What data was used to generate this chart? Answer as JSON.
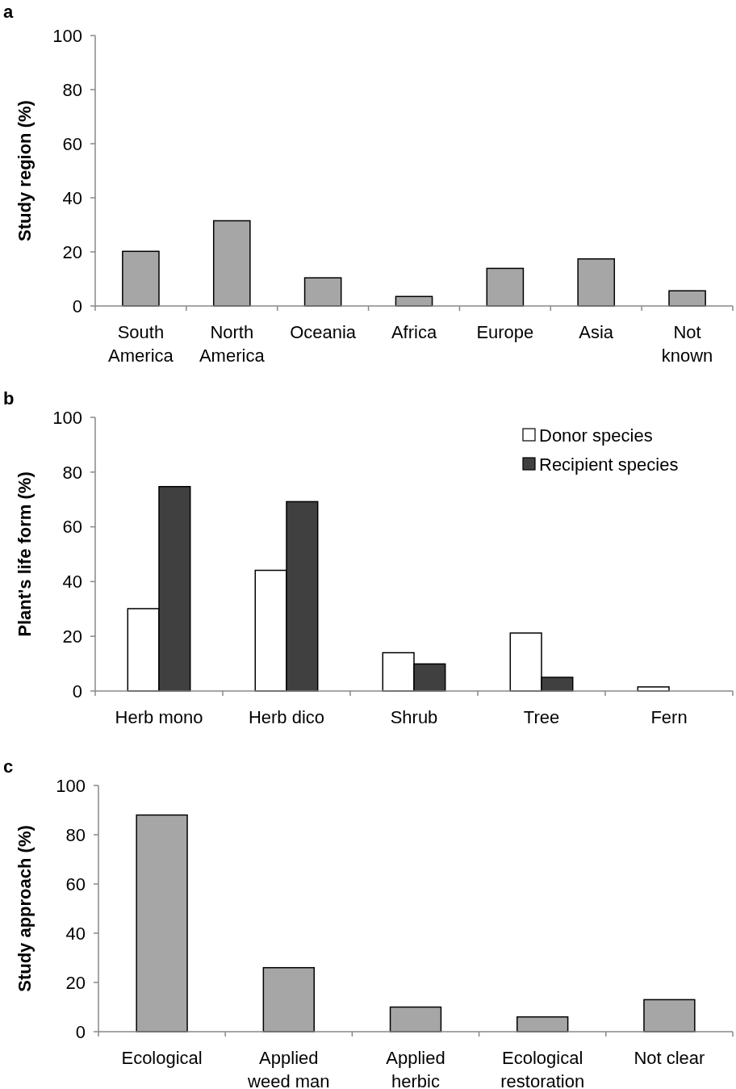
{
  "chart_data": [
    {
      "type": "bar",
      "title": "a",
      "ylabel": "Study region (%)",
      "categories": [
        "South\nAmerica",
        "North\nAmerica",
        "Oceania",
        "Africa",
        "Europe",
        "Asia",
        "Not\nknown"
      ],
      "series": [
        {
          "color": "#a6a6a6",
          "values": [
            20.2,
            31.5,
            10.4,
            3.5,
            13.9,
            17.4,
            5.6
          ]
        }
      ],
      "ylim": [
        0,
        100
      ],
      "yticks": [
        0,
        20,
        40,
        60,
        80,
        100
      ],
      "grid": false,
      "legend": false
    },
    {
      "type": "bar",
      "title": "b",
      "ylabel": "Plant's life form (%)",
      "categories": [
        "Herb mono",
        "Herb dico",
        "Shrub",
        "Tree",
        "Fern"
      ],
      "series": [
        {
          "name": "Donor species",
          "color": "#ffffff",
          "values": [
            30.1,
            44.1,
            14,
            21.2,
            1.5
          ]
        },
        {
          "name": "Recipient species",
          "color": "#404040",
          "values": [
            74.7,
            69.2,
            9.9,
            5,
            0
          ]
        }
      ],
      "ylim": [
        0,
        100
      ],
      "yticks": [
        0,
        20,
        40,
        60,
        80,
        100
      ],
      "grid": false,
      "legend": "top right"
    },
    {
      "type": "bar",
      "title": "c",
      "ylabel": "Study approach (%)",
      "categories": [
        "Ecological",
        "Applied\nweed man",
        "Applied\nherbic",
        "Ecological\nrestoration",
        "Not clear"
      ],
      "series": [
        {
          "color": "#a6a6a6",
          "values": [
            88,
            26,
            10,
            6,
            13
          ]
        }
      ],
      "ylim": [
        0,
        100
      ],
      "yticks": [
        0,
        20,
        40,
        60,
        80,
        100
      ],
      "grid": false,
      "legend": false
    }
  ]
}
